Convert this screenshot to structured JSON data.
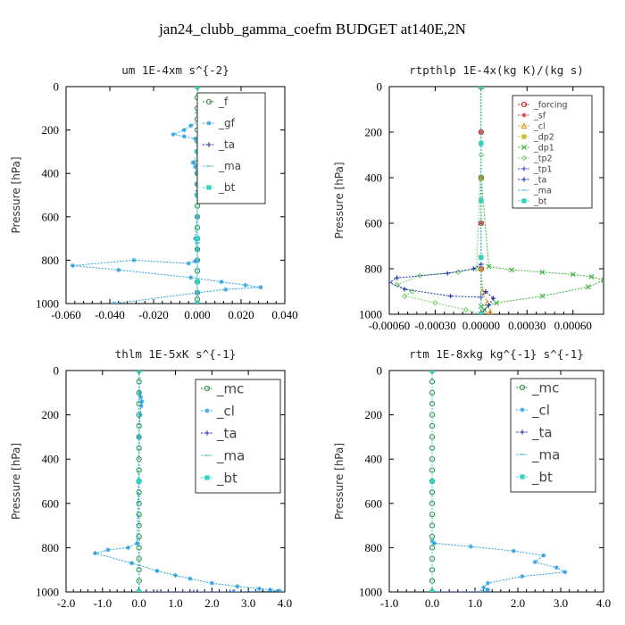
{
  "figure_title": "jan24_clubb_gamma_coefm  BUDGET at140E,2N",
  "chart_data": [
    {
      "type": "line",
      "title": "um   1E-4xm s^{-2}",
      "ylabel": "Pressure [hPa]",
      "xlim": [
        -0.06,
        0.04
      ],
      "ylim": [
        1000,
        0
      ],
      "xticks": [
        "-0.060",
        "-0.040",
        "-0.020",
        "0.000",
        "0.020",
        "0.040"
      ],
      "xtick_values": [
        -0.06,
        -0.04,
        -0.02,
        0.0,
        0.02,
        0.04
      ],
      "yticks": [
        "0",
        "200",
        "400",
        "600",
        "800",
        "1000"
      ],
      "ytick_values": [
        0,
        200,
        400,
        600,
        800,
        1000
      ],
      "legend_position": "top-right",
      "legend": [
        "_f",
        "_gf",
        "_ta",
        "_ma",
        "_bt"
      ],
      "series": [
        {
          "name": "_f",
          "color": "#2f8f3a",
          "marker": "circle",
          "x": [
            0,
            0,
            0,
            0,
            0,
            0,
            0,
            0,
            0,
            0,
            0,
            0,
            0,
            0,
            0,
            0,
            0,
            0,
            0,
            0,
            0,
            0
          ],
          "y": [
            0,
            50,
            100,
            150,
            200,
            250,
            300,
            350,
            400,
            450,
            500,
            550,
            600,
            650,
            700,
            750,
            800,
            850,
            900,
            950,
            980,
            1000
          ]
        },
        {
          "name": "_gf",
          "color": "#2aa0e0",
          "marker": "star",
          "x": [
            0,
            0.001,
            0.004,
            0.008,
            0.011,
            0.003,
            -0.003,
            -0.006,
            -0.011,
            -0.006,
            -0.001,
            0.0005,
            0.001,
            -0.002,
            -0.001,
            0,
            0,
            0,
            0,
            -0.001,
            0,
            0,
            -0.001,
            -0.004,
            -0.029,
            -0.057,
            -0.036,
            -0.003,
            0.011,
            0.022,
            0.029,
            0.013,
            0,
            -0.038
          ],
          "y": [
            0,
            80,
            105,
            115,
            125,
            150,
            180,
            200,
            220,
            230,
            240,
            270,
            300,
            350,
            370,
            400,
            450,
            500,
            600,
            700,
            750,
            800,
            805,
            815,
            800,
            825,
            845,
            880,
            900,
            915,
            925,
            935,
            950,
            1000
          ]
        },
        {
          "name": "_ta",
          "color": "#1a2fb5",
          "marker": "plus",
          "x": [
            0,
            0,
            0,
            0,
            0,
            0,
            0,
            0,
            0
          ],
          "y": [
            0,
            120,
            240,
            360,
            480,
            600,
            720,
            840,
            1000
          ]
        },
        {
          "name": "_ma",
          "color": "#4fb8d8",
          "marker": "dash",
          "x": [
            0,
            0,
            0,
            0,
            0,
            0,
            0,
            0,
            0
          ],
          "y": [
            0,
            120,
            240,
            360,
            480,
            600,
            720,
            840,
            1000
          ]
        },
        {
          "name": "_bt",
          "color": "#30d2c0",
          "marker": "square",
          "x": [
            0,
            0.0015,
            0.003,
            0.001,
            0,
            0,
            0,
            0,
            0
          ],
          "y": [
            0,
            100,
            140,
            200,
            300,
            500,
            700,
            900,
            1000
          ]
        }
      ]
    },
    {
      "type": "line",
      "title": "rtpthlp   1E-4x(kg K)/(kg s)",
      "ylabel": "Pressure [hPa]",
      "xlim": [
        -0.0006,
        0.0008
      ],
      "ylim": [
        1000,
        0
      ],
      "xticks": [
        "-0.00060",
        "-0.00030",
        "0.00000",
        "0.00030",
        "0.00060"
      ],
      "xtick_values": [
        -0.0006,
        -0.0003,
        0.0,
        0.0003,
        0.0006
      ],
      "yticks": [
        "0",
        "200",
        "400",
        "600",
        "800",
        "1000"
      ],
      "ytick_values": [
        0,
        200,
        400,
        600,
        800,
        1000
      ],
      "legend_position": "top-right",
      "legend": [
        "_forcing",
        "_sf",
        "_cl",
        "_dp2",
        "_dp1",
        "_tp2",
        "_tp1",
        "_ta",
        "_ma",
        "_bt"
      ],
      "series": [
        {
          "name": "_forcing",
          "color": "#b51f1f",
          "marker": "circle",
          "x": [
            0,
            0,
            0,
            0,
            0,
            0
          ],
          "y": [
            0,
            200,
            400,
            600,
            800,
            1000
          ]
        },
        {
          "name": "_sf",
          "color": "#d93a3a",
          "marker": "star",
          "x": [
            0,
            0,
            0,
            0,
            0,
            0
          ],
          "y": [
            0,
            200,
            400,
            600,
            800,
            1000
          ]
        },
        {
          "name": "_cl",
          "color": "#e0901a",
          "marker": "triangle",
          "x": [
            0,
            0,
            0,
            1e-05,
            4e-05,
            6e-05,
            0
          ],
          "y": [
            0,
            400,
            800,
            900,
            950,
            990,
            1000
          ]
        },
        {
          "name": "_dp2",
          "color": "#c7c030",
          "marker": "square",
          "x": [
            0,
            0,
            0,
            0,
            0
          ],
          "y": [
            0,
            250,
            500,
            750,
            1000
          ]
        },
        {
          "name": "_dp1",
          "color": "#3bb33b",
          "marker": "cross",
          "x": [
            0,
            0,
            5e-05,
            0.0002,
            0.0004,
            0.0006,
            0.00072,
            0.0008,
            0.0007,
            0.0004,
            0.0001,
            0,
            2e-05,
            0
          ],
          "y": [
            0,
            400,
            790,
            805,
            815,
            825,
            835,
            850,
            880,
            920,
            950,
            965,
            980,
            1000
          ]
        },
        {
          "name": "_tp2",
          "color": "#7ad06e",
          "marker": "diamond",
          "x": [
            0,
            0,
            -3e-05,
            -0.00015,
            -0.0004,
            -0.00055,
            -0.00045,
            -0.0005,
            -0.0003,
            -0.0001,
            0
          ],
          "y": [
            0,
            300,
            800,
            815,
            830,
            870,
            900,
            920,
            950,
            980,
            1000
          ]
        },
        {
          "name": "_tp1",
          "color": "#2a3fe0",
          "marker": "plus",
          "x": [
            0,
            0,
            0,
            0,
            0
          ],
          "y": [
            0,
            250,
            500,
            750,
            1000
          ]
        },
        {
          "name": "_ta",
          "color": "#1a2fb5",
          "marker": "plus",
          "x": [
            0,
            0,
            -5e-05,
            -0.00022,
            -0.00055,
            -0.0006,
            -0.0005,
            -0.0002,
            0.0,
            3e-05,
            8e-05,
            5e-05,
            0.0
          ],
          "y": [
            0,
            780,
            800,
            820,
            840,
            860,
            890,
            920,
            925,
            900,
            930,
            960,
            1000
          ]
        },
        {
          "name": "_ma",
          "color": "#4fb8d8",
          "marker": "dash",
          "x": [
            0,
            0,
            0,
            0,
            0
          ],
          "y": [
            0,
            250,
            500,
            750,
            1000
          ]
        },
        {
          "name": "_bt",
          "color": "#30d2c0",
          "marker": "square",
          "x": [
            0,
            0,
            0,
            0,
            0
          ],
          "y": [
            0,
            250,
            500,
            750,
            1000
          ]
        }
      ]
    },
    {
      "type": "line",
      "title": "thlm   1E-5xK s^{-1}",
      "ylabel": "Pressure [hPa]",
      "xlim": [
        -2.0,
        4.0
      ],
      "ylim": [
        1000,
        0
      ],
      "xticks": [
        "-2.0",
        "-1.0",
        "0.0",
        "1.0",
        "2.0",
        "3.0",
        "4.0"
      ],
      "xtick_values": [
        -2,
        -1,
        0,
        1,
        2,
        3,
        4
      ],
      "yticks": [
        "0",
        "200",
        "400",
        "600",
        "800",
        "1000"
      ],
      "ytick_values": [
        0,
        200,
        400,
        600,
        800,
        1000
      ],
      "legend_position": "top-right",
      "legend": [
        "_mc",
        "_cl",
        "_ta",
        "_ma",
        "_bt"
      ],
      "series": [
        {
          "name": "_mc",
          "color": "#2f8f3a",
          "marker": "circle",
          "x": [
            0,
            0,
            0,
            0,
            0,
            0,
            0,
            0,
            0,
            0,
            0,
            0,
            0,
            0,
            0,
            0,
            0,
            0,
            0,
            0,
            0
          ],
          "y": [
            0,
            50,
            100,
            150,
            200,
            250,
            300,
            350,
            400,
            450,
            500,
            550,
            600,
            650,
            700,
            750,
            800,
            850,
            900,
            950,
            1000
          ]
        },
        {
          "name": "_cl",
          "color": "#2aa0e0",
          "marker": "star",
          "x": [
            0,
            0.02,
            0.05,
            0.08,
            0.06,
            0.03,
            0,
            -0.02,
            -0.05,
            -0.3,
            -0.85,
            -1.2,
            -0.2,
            0.5,
            1.0,
            1.4,
            2.0,
            2.7,
            3.3,
            3.6,
            3.85,
            2.6,
            0
          ],
          "y": [
            0,
            100,
            120,
            140,
            160,
            200,
            300,
            500,
            780,
            800,
            810,
            825,
            870,
            905,
            925,
            940,
            960,
            975,
            985,
            990,
            995,
            1000,
            1000
          ]
        },
        {
          "name": "_ta",
          "color": "#1a2fb5",
          "marker": "plus",
          "x": [
            0,
            0,
            0,
            0.5,
            1.0,
            1.5,
            2.0,
            2.5,
            3.0
          ],
          "y": [
            0,
            500,
            1000,
            1000,
            1000,
            1000,
            1000,
            1000,
            1000
          ]
        },
        {
          "name": "_ma",
          "color": "#4fb8d8",
          "marker": "dash",
          "x": [
            0,
            0,
            0
          ],
          "y": [
            0,
            500,
            1000
          ]
        },
        {
          "name": "_bt",
          "color": "#30d2c0",
          "marker": "square",
          "x": [
            0,
            0,
            0
          ],
          "y": [
            0,
            500,
            1000
          ]
        }
      ]
    },
    {
      "type": "line",
      "title": "rtm   1E-8xkg kg^{-1} s^{-1}",
      "ylabel": "Pressure [hPa]",
      "xlim": [
        -1.0,
        4.0
      ],
      "ylim": [
        1000,
        0
      ],
      "xticks": [
        "-1.0",
        "0.0",
        "1.0",
        "2.0",
        "3.0",
        "4.0"
      ],
      "xtick_values": [
        -1,
        0,
        1,
        2,
        3,
        4
      ],
      "yticks": [
        "0",
        "200",
        "400",
        "600",
        "800",
        "1000"
      ],
      "ytick_values": [
        0,
        200,
        400,
        600,
        800,
        1000
      ],
      "legend_position": "top-right",
      "legend": [
        "_mc",
        "_cl",
        "_ta",
        "_ma",
        "_bt"
      ],
      "series": [
        {
          "name": "_mc",
          "color": "#2f8f3a",
          "marker": "circle",
          "x": [
            0,
            0,
            0,
            0,
            0,
            0,
            0,
            0,
            0,
            0,
            0,
            0,
            0,
            0,
            0,
            0,
            0,
            0,
            0,
            0,
            0
          ],
          "y": [
            0,
            50,
            100,
            150,
            200,
            250,
            300,
            350,
            400,
            450,
            500,
            550,
            600,
            650,
            700,
            750,
            800,
            850,
            900,
            950,
            1000
          ]
        },
        {
          "name": "_cl",
          "color": "#2aa0e0",
          "marker": "star",
          "x": [
            0,
            0,
            0.05,
            0.9,
            1.9,
            2.6,
            2.4,
            2.9,
            3.1,
            2.1,
            1.3,
            1.2,
            1.3,
            1.15
          ],
          "y": [
            0,
            770,
            780,
            795,
            815,
            835,
            865,
            890,
            910,
            930,
            960,
            980,
            990,
            1000
          ]
        },
        {
          "name": "_ta",
          "color": "#1a2fb5",
          "marker": "plus",
          "x": [
            0,
            0,
            0,
            0.2,
            0.4,
            0.6,
            0.8,
            1.0
          ],
          "y": [
            0,
            500,
            1000,
            1000,
            1000,
            1000,
            1000,
            1000
          ]
        },
        {
          "name": "_ma",
          "color": "#4fb8d8",
          "marker": "dash",
          "x": [
            0,
            0,
            0
          ],
          "y": [
            0,
            500,
            1000
          ]
        },
        {
          "name": "_bt",
          "color": "#30d2c0",
          "marker": "square",
          "x": [
            0,
            0,
            0
          ],
          "y": [
            0,
            500,
            1000
          ]
        }
      ]
    }
  ]
}
